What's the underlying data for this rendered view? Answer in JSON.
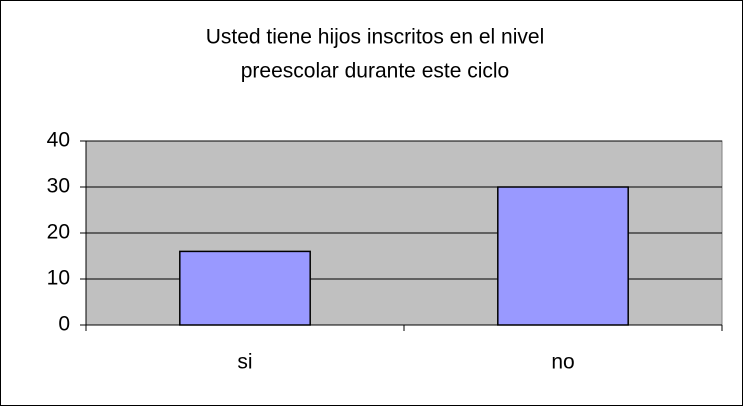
{
  "chart_data": {
    "type": "bar",
    "title": [
      "Usted tiene hijos inscritos en el nivel",
      "preescolar durante este ciclo"
    ],
    "categories": [
      "si",
      "no"
    ],
    "values": [
      16,
      30
    ],
    "color": "#9999ff",
    "ylim": [
      0,
      40
    ],
    "yticks": [
      0,
      10,
      20,
      30,
      40
    ],
    "grid": true,
    "plot_background": "#c0c0c0"
  }
}
